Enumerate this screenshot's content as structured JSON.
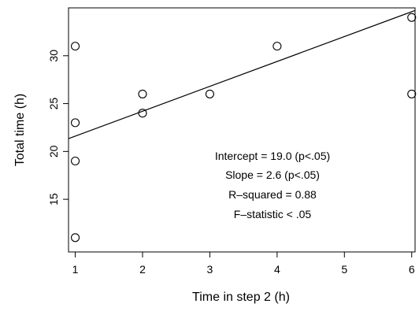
{
  "chart_data": {
    "type": "scatter",
    "title": "",
    "xlabel": "Time in step 2 (h)",
    "ylabel": "Total time (h)",
    "xlim": [
      0.9,
      6.05
    ],
    "ylim": [
      9.5,
      35
    ],
    "xticks": [
      "1",
      "2",
      "3",
      "4",
      "5",
      "6"
    ],
    "yticks": [
      "15",
      "20",
      "25",
      "30"
    ],
    "grid": false,
    "legend": "none",
    "points": [
      {
        "x": 1,
        "y": 31
      },
      {
        "x": 1,
        "y": 23
      },
      {
        "x": 1,
        "y": 19
      },
      {
        "x": 1,
        "y": 11
      },
      {
        "x": 2,
        "y": 26
      },
      {
        "x": 2,
        "y": 24
      },
      {
        "x": 3,
        "y": 26
      },
      {
        "x": 4,
        "y": 31
      },
      {
        "x": 6,
        "y": 34
      },
      {
        "x": 6,
        "y": 26
      }
    ],
    "fit_line": {
      "intercept": 19.0,
      "slope": 2.6
    },
    "annotations": [
      "Intercept = 19.0 (p<.05)",
      "Slope = 2.6 (p<.05)",
      "R–squared = 0.88",
      "F–statistic < .05"
    ]
  }
}
